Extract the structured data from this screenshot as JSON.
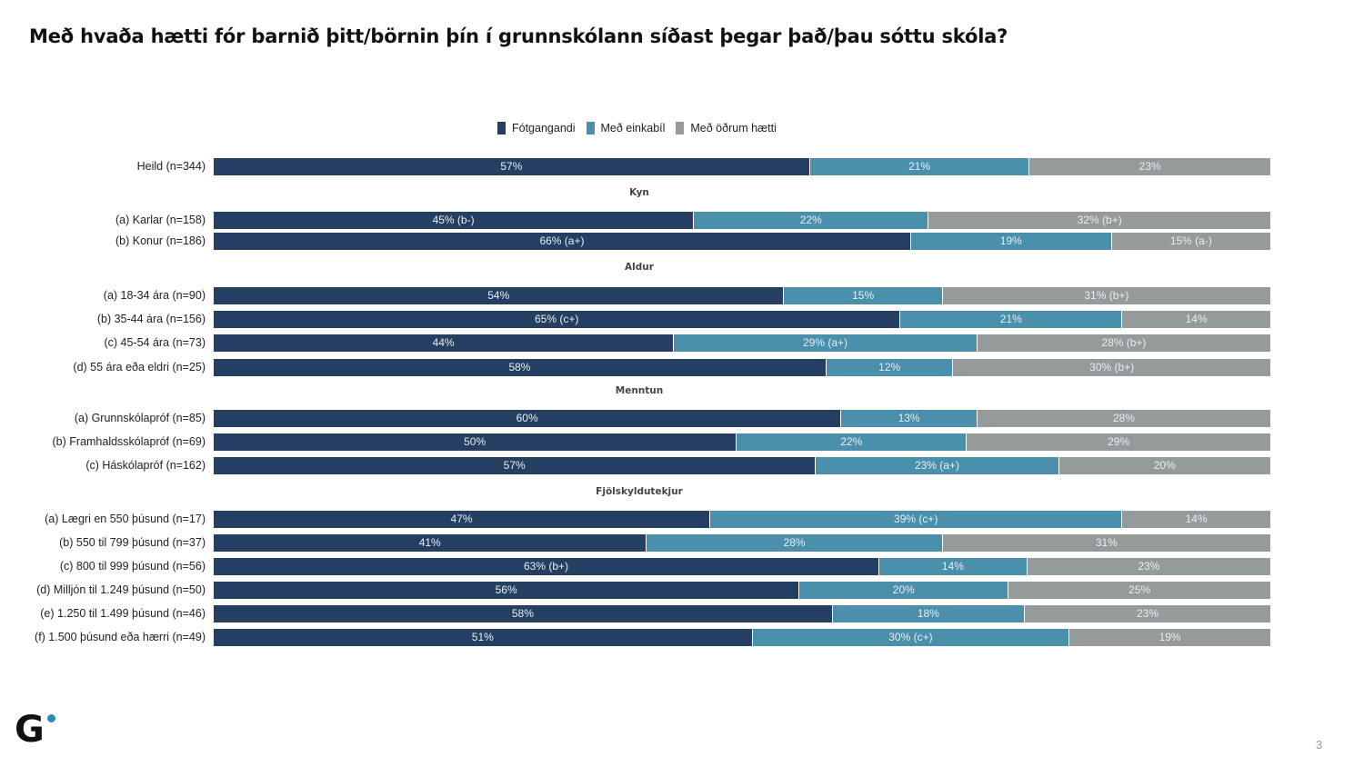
{
  "title": "Með hvaða hætti fór barnið þitt/börnin þín í grunnskólann síðast þegar það/þau sóttu skóla?",
  "page_number": "3",
  "logo": "G",
  "colors": {
    "footgangandi": "#243f62",
    "einkabil": "#4a8fac",
    "odrum": "#959a9b",
    "logo_dot": "#2a8fb0"
  },
  "chart_data": {
    "type": "bar",
    "orientation": "horizontal",
    "stacked": true,
    "normalized_100": true,
    "title": "Með hvaða hætti fór barnið þitt/börnin þín í grunnskólann síðast þegar það/þau sóttu skóla?",
    "legend_position": "top-center",
    "legend": [
      "Fótgangandi",
      "Með einkabíl",
      "Með öðrum hætti"
    ],
    "xlabel": "",
    "ylabel": "",
    "xlim": [
      0,
      100
    ],
    "grid": false,
    "rows": [
      {
        "group": "",
        "label": "Heild (n=344)",
        "values": [
          57,
          21,
          23
        ],
        "labels": [
          "57%",
          "21%",
          "23%"
        ]
      },
      {
        "group": "Kyn",
        "label": "(a) Karlar (n=158)",
        "values": [
          45,
          22,
          32
        ],
        "labels": [
          "45% (b-)",
          "22%",
          "32% (b+)"
        ]
      },
      {
        "group": "Kyn",
        "label": "(b) Konur (n=186)",
        "values": [
          66,
          19,
          15
        ],
        "labels": [
          "66% (a+)",
          "19%",
          "15% (a-)"
        ]
      },
      {
        "group": "Aldur",
        "label": "(a) 18-34 ára (n=90)",
        "values": [
          54,
          15,
          31
        ],
        "labels": [
          "54%",
          "15%",
          "31% (b+)"
        ]
      },
      {
        "group": "Aldur",
        "label": "(b) 35-44 ára (n=156)",
        "values": [
          65,
          21,
          14
        ],
        "labels": [
          "65% (c+)",
          "21%",
          "14%"
        ]
      },
      {
        "group": "Aldur",
        "label": "(c) 45-54 ára (n=73)",
        "values": [
          44,
          29,
          28
        ],
        "labels": [
          "44%",
          "29% (a+)",
          "28% (b+)"
        ]
      },
      {
        "group": "Aldur",
        "label": "(d) 55 ára eða eldri (n=25)",
        "values": [
          58,
          12,
          30
        ],
        "labels": [
          "58%",
          "12%",
          "30% (b+)"
        ]
      },
      {
        "group": "Menntun",
        "label": "(a) Grunnskólapróf (n=85)",
        "values": [
          60,
          13,
          28
        ],
        "labels": [
          "60%",
          "13%",
          "28%"
        ]
      },
      {
        "group": "Menntun",
        "label": "(b) Framhaldsskólapróf (n=69)",
        "values": [
          50,
          22,
          29
        ],
        "labels": [
          "50%",
          "22%",
          "29%"
        ]
      },
      {
        "group": "Menntun",
        "label": "(c) Háskólapróf (n=162)",
        "values": [
          57,
          23,
          20
        ],
        "labels": [
          "57%",
          "23% (a+)",
          "20%"
        ]
      },
      {
        "group": "Fjölskyldutekjur",
        "label": "(a) Lægri en 550 þúsund (n=17)",
        "values": [
          47,
          39,
          14
        ],
        "labels": [
          "47%",
          "39% (c+)",
          "14%"
        ]
      },
      {
        "group": "Fjölskyldutekjur",
        "label": "(b) 550 til 799 þúsund (n=37)",
        "values": [
          41,
          28,
          31
        ],
        "labels": [
          "41%",
          "28%",
          "31%"
        ]
      },
      {
        "group": "Fjölskyldutekjur",
        "label": "(c) 800 til 999 þúsund (n=56)",
        "values": [
          63,
          14,
          23
        ],
        "labels": [
          "63% (b+)",
          "14%",
          "23%"
        ]
      },
      {
        "group": "Fjölskyldutekjur",
        "label": "(d) Milljón til 1.249 þúsund (n=50)",
        "values": [
          56,
          20,
          25
        ],
        "labels": [
          "56%",
          "20%",
          "25%"
        ]
      },
      {
        "group": "Fjölskyldutekjur",
        "label": "(e) 1.250 til 1.499 þúsund (n=46)",
        "values": [
          58,
          18,
          23
        ],
        "labels": [
          "58%",
          "18%",
          "23%"
        ]
      },
      {
        "group": "Fjölskyldutekjur",
        "label": "(f) 1.500 þúsund eða hærri (n=49)",
        "values": [
          51,
          30,
          19
        ],
        "labels": [
          "51%",
          "30% (c+)",
          "19%"
        ]
      }
    ],
    "group_headers": [
      "Kyn",
      "Aldur",
      "Menntun",
      "Fjölskyldutekjur"
    ]
  }
}
